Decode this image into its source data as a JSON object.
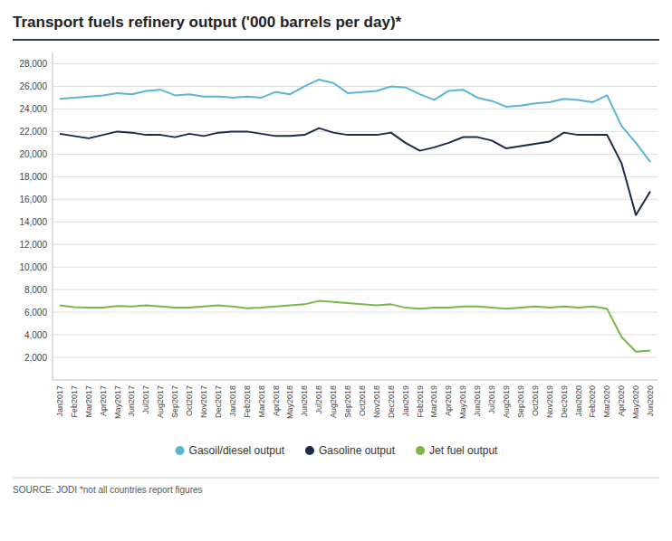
{
  "chart_data": {
    "type": "line",
    "title": "Transport fuels refinery output ('000 barrels per day)*",
    "annotations": [
      "SOURCE: JODI *not all countries report figures"
    ],
    "categories": [
      "Jan2017",
      "Feb2017",
      "Mar2017",
      "Apr2017",
      "May2017",
      "Jun2017",
      "Jul2017",
      "Aug2017",
      "Sep2017",
      "Oct2017",
      "Nov2017",
      "Dec2017",
      "Jan2018",
      "Feb2018",
      "Mar2018",
      "Apr2018",
      "May2018",
      "Jun2018",
      "Jul2018",
      "Aug2018",
      "Sep2018",
      "Oct2018",
      "Nov2018",
      "Dec2018",
      "Jan2019",
      "Feb2019",
      "Mar2019",
      "Apr2019",
      "May2019",
      "Jun2019",
      "Jul2019",
      "Aug2019",
      "Sep2019",
      "Oct2019",
      "Nov2019",
      "Dec2019",
      "Jan2020",
      "Feb2020",
      "Mar2020",
      "Apr2020",
      "May2020",
      "Jun2020"
    ],
    "series": [
      {
        "name": "Gasoil/diesel output",
        "color": "#5ab4d6",
        "values": [
          24900,
          25000,
          25100,
          25200,
          25400,
          25300,
          25600,
          25700,
          25200,
          25300,
          25100,
          25100,
          25000,
          25100,
          25000,
          25500,
          25300,
          26000,
          26600,
          26300,
          25400,
          25500,
          25600,
          26000,
          25900,
          25300,
          24800,
          25600,
          25700,
          25000,
          24700,
          24200,
          24300,
          24500,
          24600,
          24900,
          24800,
          24600,
          25200,
          22500,
          21000,
          19300
        ]
      },
      {
        "name": "Gasoline output",
        "color": "#1a2a4a",
        "values": [
          21800,
          21600,
          21400,
          21700,
          22000,
          21900,
          21700,
          21700,
          21500,
          21800,
          21600,
          21900,
          22000,
          22000,
          21800,
          21600,
          21600,
          21700,
          22300,
          21900,
          21700,
          21700,
          21700,
          21900,
          21000,
          20300,
          20600,
          21000,
          21500,
          21500,
          21200,
          20500,
          20700,
          20900,
          21100,
          21900,
          21700,
          21700,
          21700,
          19200,
          14600,
          16700
        ]
      },
      {
        "name": "Jet fuel output",
        "color": "#7ab648",
        "values": [
          6600,
          6450,
          6400,
          6400,
          6550,
          6500,
          6600,
          6500,
          6400,
          6400,
          6500,
          6600,
          6500,
          6350,
          6400,
          6500,
          6600,
          6700,
          7000,
          6900,
          6800,
          6700,
          6600,
          6700,
          6400,
          6300,
          6400,
          6400,
          6500,
          6500,
          6400,
          6300,
          6400,
          6500,
          6400,
          6500,
          6400,
          6500,
          6300,
          3800,
          2500,
          2600
        ]
      }
    ],
    "ylim": [
      0,
      29000
    ],
    "yticks": [
      {
        "value": 2000,
        "label": "2,000"
      },
      {
        "value": 4000,
        "label": "4,000"
      },
      {
        "value": 6000,
        "label": "6,000"
      },
      {
        "value": 8000,
        "label": "8,000"
      },
      {
        "value": 10000,
        "label": "10,000"
      },
      {
        "value": 12000,
        "label": "12,000"
      },
      {
        "value": 14000,
        "label": "14,000"
      },
      {
        "value": 16000,
        "label": "16,000"
      },
      {
        "value": 18000,
        "label": "18,000"
      },
      {
        "value": 20000,
        "label": "20,000"
      },
      {
        "value": 22000,
        "label": "22,000"
      },
      {
        "value": 24000,
        "label": "24,000"
      },
      {
        "value": 26000,
        "label": "26,000"
      },
      {
        "value": 28000,
        "label": "28,000"
      }
    ],
    "grid": true,
    "legend": "bottom"
  }
}
